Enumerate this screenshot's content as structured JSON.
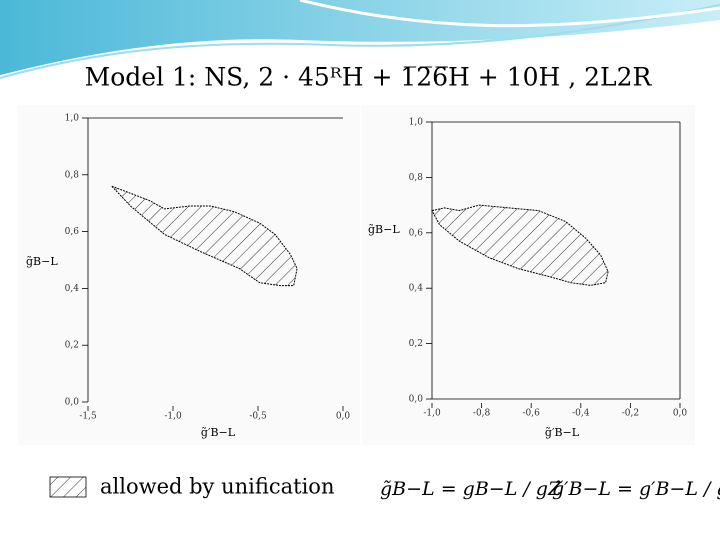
{
  "title": "Model 1: NS, 2 · 45ᴿH + 1̅2̅6̅H + 10H , 2L2R",
  "legend": "allowed by unification",
  "formulas": [
    "g̃B−L = gB−L / gZ",
    "g̃′B−L = g′B−L / gZ"
  ],
  "chart_data": [
    {
      "type": "region",
      "color": "#000000",
      "x_label": "g̃′B−L",
      "y_label": "g̃B−L",
      "x": [
        -1.36,
        -1.14,
        -1.05,
        -0.9,
        -0.78,
        -0.64,
        -0.49,
        -0.4,
        -0.31,
        -0.27,
        -0.29,
        -0.37,
        -0.49,
        -0.61,
        -0.84,
        -1.05,
        -1.25
      ],
      "values": [
        0.76,
        0.71,
        0.68,
        0.69,
        0.69,
        0.67,
        0.63,
        0.59,
        0.52,
        0.47,
        0.41,
        0.41,
        0.42,
        0.47,
        0.53,
        0.59,
        0.69
      ],
      "xlim": [
        -1.5,
        0
      ],
      "ylim": [
        0,
        1
      ],
      "xticks": [
        {
          "value": -1.5,
          "label": "-1,5"
        },
        {
          "value": -1,
          "label": "-1,0"
        },
        {
          "value": -0.5,
          "label": "-0,5"
        },
        {
          "value": 0,
          "label": "0,0"
        }
      ],
      "yticks": [
        {
          "value": 0,
          "label": "0,0"
        },
        {
          "value": 0.2,
          "label": "0,2"
        },
        {
          "value": 0.4,
          "label": "0,4"
        },
        {
          "value": 0.6,
          "label": "0,6"
        },
        {
          "value": 0.8,
          "label": "0,8"
        },
        {
          "value": 1,
          "label": "1,0"
        }
      ]
    },
    {
      "type": "region",
      "color": "#000000",
      "x_label": "g̃′B−L",
      "y_label": "g̃B−L",
      "x": [
        -1.0,
        -0.95,
        -0.89,
        -0.81,
        -0.69,
        -0.57,
        -0.46,
        -0.38,
        -0.32,
        -0.29,
        -0.3,
        -0.36,
        -0.44,
        -0.52,
        -0.65,
        -0.77,
        -0.89,
        -0.97
      ],
      "values": [
        0.68,
        0.69,
        0.68,
        0.7,
        0.69,
        0.68,
        0.64,
        0.58,
        0.52,
        0.46,
        0.42,
        0.41,
        0.42,
        0.44,
        0.47,
        0.51,
        0.57,
        0.63
      ],
      "xlim": [
        -1,
        0
      ],
      "ylim": [
        0,
        1
      ],
      "xticks": [
        {
          "value": -1,
          "label": "-1,0"
        },
        {
          "value": -0.8,
          "label": "-0,8"
        },
        {
          "value": -0.6,
          "label": "-0,6"
        },
        {
          "value": -0.4,
          "label": "-0,4"
        },
        {
          "value": -0.2,
          "label": "-0,2"
        },
        {
          "value": 0,
          "label": "0,0"
        }
      ],
      "yticks": [
        {
          "value": 0,
          "label": "0,0"
        },
        {
          "value": 0.2,
          "label": "0,2"
        },
        {
          "value": 0.4,
          "label": "0,4"
        },
        {
          "value": 0.6,
          "label": "0,6"
        },
        {
          "value": 0.8,
          "label": "0,8"
        },
        {
          "value": 1,
          "label": "1,0"
        }
      ]
    }
  ]
}
